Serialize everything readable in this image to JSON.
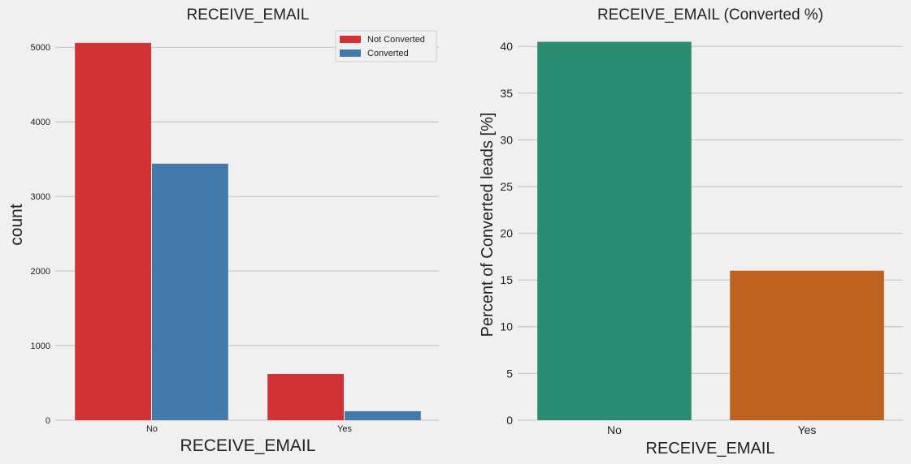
{
  "colors": {
    "background": "#f0f0f0",
    "grid": "#cbcbcb",
    "text": "#222222",
    "not_converted": "#d03235",
    "converted": "#437aa9",
    "no": "#2a8c70",
    "yes": "#bd621f"
  },
  "chart_data": [
    {
      "type": "bar",
      "title": "RECEIVE_EMAIL",
      "xlabel": "RECEIVE_EMAIL",
      "ylabel": "count",
      "categories": [
        "No",
        "Yes"
      ],
      "series": [
        {
          "name": "Not Converted",
          "values": [
            5060,
            620
          ],
          "color": "#d03235"
        },
        {
          "name": "Converted",
          "values": [
            3440,
            120
          ],
          "color": "#437aa9"
        }
      ],
      "ylim": [
        0,
        5200
      ],
      "yticks": [
        0,
        1000,
        2000,
        3000,
        4000,
        5000
      ],
      "grid": true,
      "legend": "top-right"
    },
    {
      "type": "bar",
      "title": "RECEIVE_EMAIL (Converted %)",
      "xlabel": "RECEIVE_EMAIL",
      "ylabel": "Percent of Converted leads [%]",
      "categories": [
        "No",
        "Yes"
      ],
      "values": [
        40.5,
        16.0
      ],
      "colors": [
        "#2a8c70",
        "#bd621f"
      ],
      "ylim": [
        0,
        41.5
      ],
      "yticks": [
        0,
        5,
        10,
        15,
        20,
        25,
        30,
        35,
        40
      ],
      "grid": true
    }
  ]
}
